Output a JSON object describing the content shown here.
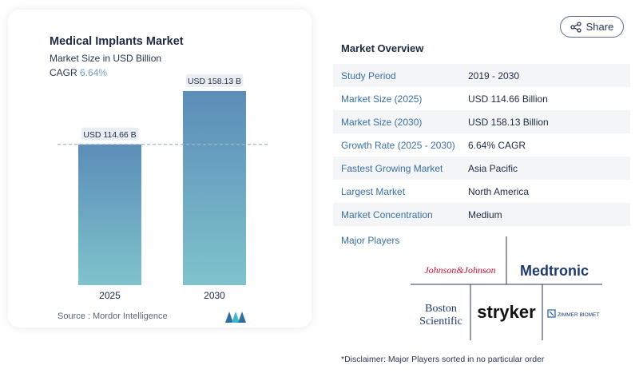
{
  "share": {
    "label": "Share",
    "icon": "share-icon"
  },
  "chart_card": {
    "title": "Medical Implants Market",
    "subtitle": "Market Size in USD Billion",
    "cagr_label": "CAGR",
    "cagr_value": "6.64%",
    "source": "Source : Mordor Intelligence"
  },
  "chart_data": {
    "type": "bar",
    "categories": [
      "2025",
      "2030"
    ],
    "values": [
      114.66,
      158.13
    ],
    "data_labels": [
      "USD 114.66 B",
      "USD 158.13 B"
    ],
    "title": "Medical Implants Market",
    "ylabel": "Market Size in USD Billion",
    "ylim": [
      0,
      175
    ],
    "reference_line_value": 114.66,
    "colors": {
      "bar_top": "#5b8db8",
      "bar_bottom": "#7fc3cc",
      "label_bg": "#e9eef3",
      "ref_line": "#9fb8cb"
    }
  },
  "overview": {
    "title": "Market Overview",
    "rows": [
      {
        "label": "Study Period",
        "value": "2019 - 2030"
      },
      {
        "label": "Market Size (2025)",
        "value": "USD 114.66 Billion"
      },
      {
        "label": "Market Size (2030)",
        "value": "USD 158.13 Billion"
      },
      {
        "label": "Growth Rate (2025 - 2030)",
        "value": "6.64% CAGR"
      },
      {
        "label": "Fastest Growing Market",
        "value": "Asia Pacific"
      },
      {
        "label": "Largest Market",
        "value": "North America"
      },
      {
        "label": "Market Concentration",
        "value": "Medium"
      }
    ]
  },
  "players": {
    "title": "Major Players",
    "logos": {
      "jnj": "Johnson&Johnson",
      "medtronic": "Medtronic",
      "boston_1": "Boston",
      "boston_2": "Scientific",
      "stryker": "stryker",
      "zimmer": "ZIMMER BIOMET"
    }
  },
  "disclaimer": "*Disclaimer: Major Players sorted in no particular order"
}
